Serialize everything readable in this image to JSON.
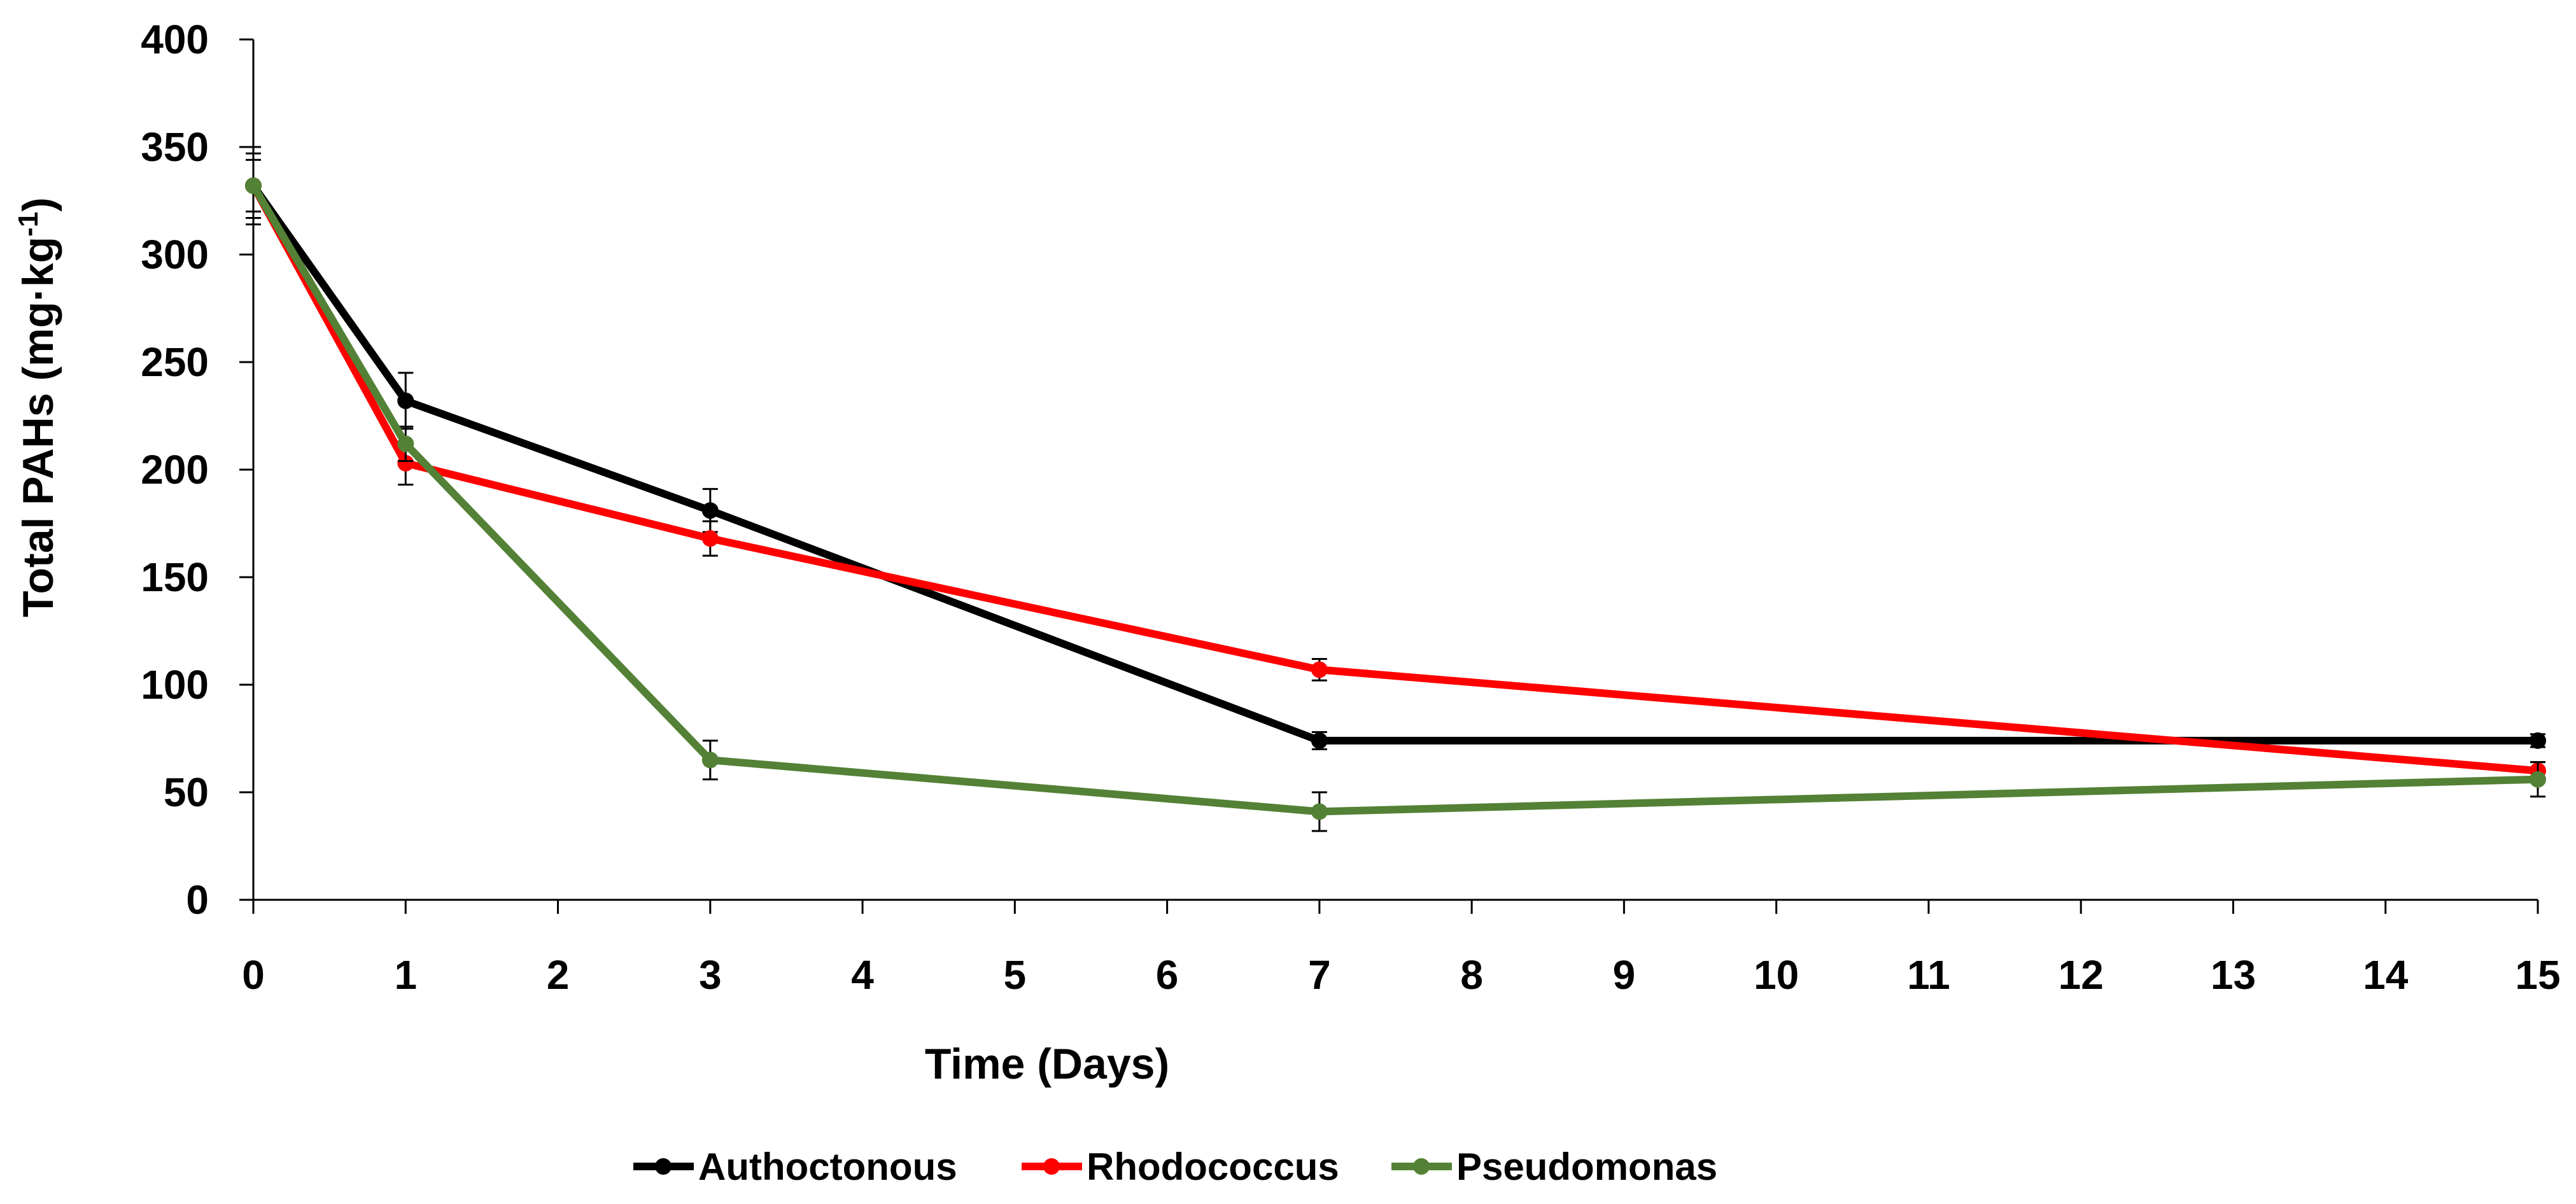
{
  "chart_data": {
    "type": "line",
    "title": "",
    "xlabel": "Time (Days)",
    "ylabel_main": "Total PAHs (mg·kg",
    "ylabel_sup": "-1",
    "ylabel_end": ")",
    "xlim": [
      0,
      15
    ],
    "ylim": [
      0,
      400
    ],
    "x_ticks": [
      "0",
      "1",
      "2",
      "3",
      "4",
      "5",
      "6",
      "7",
      "8",
      "9",
      "10",
      "11",
      "12",
      "13",
      "14",
      "15"
    ],
    "y_ticks": [
      "0",
      "50",
      "100",
      "150",
      "200",
      "250",
      "300",
      "350",
      "400"
    ],
    "grid": false,
    "legend_position": "bottom",
    "series": [
      {
        "name": "Authoctonous",
        "color": "#000000",
        "x": [
          0,
          1,
          3,
          7,
          15
        ],
        "y": [
          332,
          232,
          181,
          74,
          74
        ],
        "err": [
          18,
          13,
          10,
          4,
          3
        ]
      },
      {
        "name": "Rhodococcus",
        "color": "#ff0000",
        "x": [
          0,
          1,
          3,
          7,
          15
        ],
        "y": [
          332,
          203,
          168,
          107,
          60
        ],
        "err": [
          15,
          10,
          8,
          5,
          4
        ]
      },
      {
        "name": "Pseudomonas",
        "color": "#538135",
        "x": [
          0,
          1,
          3,
          7,
          15
        ],
        "y": [
          332,
          212,
          65,
          41,
          56
        ],
        "err": [
          12,
          8,
          9,
          9,
          8
        ]
      }
    ]
  }
}
